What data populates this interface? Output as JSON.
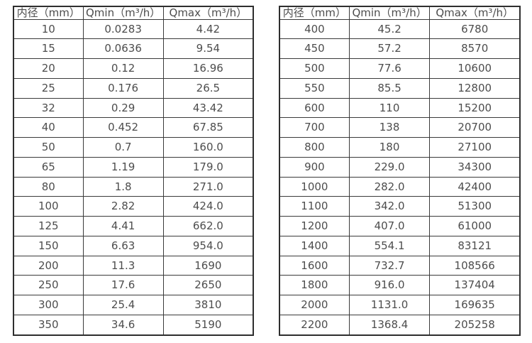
{
  "page": {
    "background_color": "#ffffff",
    "text_color": "#4d4d4d",
    "border_color": "#2e2e2e"
  },
  "tables": [
    {
      "name": "small-diameter-flow-table",
      "headers": [
        "内径（mm）",
        "Qmin（m³/h）",
        "Qmax（m³/h）"
      ],
      "rows": [
        [
          "10",
          "0.0283",
          "4.42"
        ],
        [
          "15",
          "0.0636",
          "9.54"
        ],
        [
          "20",
          "0.12",
          "16.96"
        ],
        [
          "25",
          "0.176",
          "26.5"
        ],
        [
          "32",
          "0.29",
          "43.42"
        ],
        [
          "40",
          "0.452",
          "67.85"
        ],
        [
          "50",
          "0.7",
          "160.0"
        ],
        [
          "65",
          "1.19",
          "179.0"
        ],
        [
          "80",
          "1.8",
          "271.0"
        ],
        [
          "100",
          "2.82",
          "424.0"
        ],
        [
          "125",
          "4.41",
          "662.0"
        ],
        [
          "150",
          "6.63",
          "954.0"
        ],
        [
          "200",
          "11.3",
          "1690"
        ],
        [
          "250",
          "17.6",
          "2650"
        ],
        [
          "300",
          "25.4",
          "3810"
        ],
        [
          "350",
          "34.6",
          "5190"
        ]
      ]
    },
    {
      "name": "large-diameter-flow-table",
      "headers": [
        "内径（mm）",
        "Qmin（m³/h）",
        "Qmax（m³/h）"
      ],
      "rows": [
        [
          "400",
          "45.2",
          "6780"
        ],
        [
          "450",
          "57.2",
          "8570"
        ],
        [
          "500",
          "77.6",
          "10600"
        ],
        [
          "550",
          "85.5",
          "12800"
        ],
        [
          "600",
          "110",
          "15200"
        ],
        [
          "700",
          "138",
          "20700"
        ],
        [
          "800",
          "180",
          "27100"
        ],
        [
          "900",
          "229.0",
          "34300"
        ],
        [
          "1000",
          "282.0",
          "42400"
        ],
        [
          "1100",
          "342.0",
          "51300"
        ],
        [
          "1200",
          "407.0",
          "61000"
        ],
        [
          "1400",
          "554.1",
          "83121"
        ],
        [
          "1600",
          "732.7",
          "108566"
        ],
        [
          "1800",
          "916.0",
          "137404"
        ],
        [
          "2000",
          "1131.0",
          "169635"
        ],
        [
          "2200",
          "1368.4",
          "205258"
        ]
      ]
    }
  ]
}
